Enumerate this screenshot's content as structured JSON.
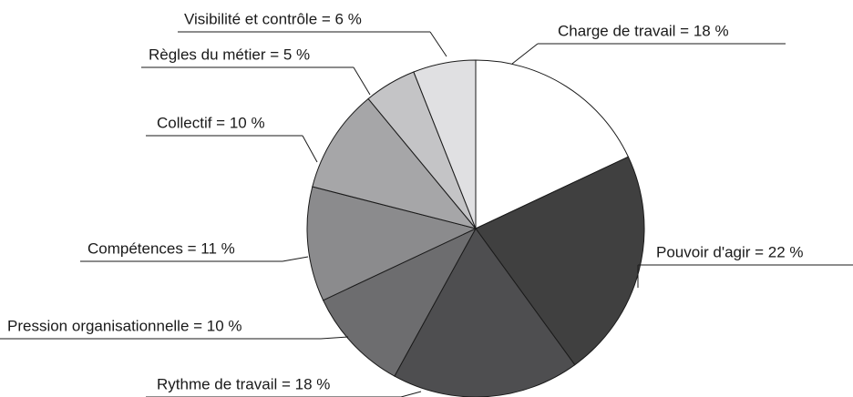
{
  "chart_data": {
    "type": "pie",
    "categories": [
      "Charge de travail = 18 %",
      "Pouvoir d'agir = 22 %",
      "Rythme de travail = 18 %",
      "Pression organisationnelle = 10 %",
      "Compétences = 11 %",
      "Collectif = 10 %",
      "Règles du métier = 5 %",
      "Visibilité et contrôle = 6 %"
    ],
    "values": [
      18,
      22,
      18,
      10,
      11,
      10,
      5,
      6
    ],
    "colors": [
      "#ffffff",
      "#404040",
      "#4e4e50",
      "#6d6d6f",
      "#8b8b8d",
      "#a6a6a8",
      "#c4c4c6",
      "#e0e0e2"
    ]
  }
}
